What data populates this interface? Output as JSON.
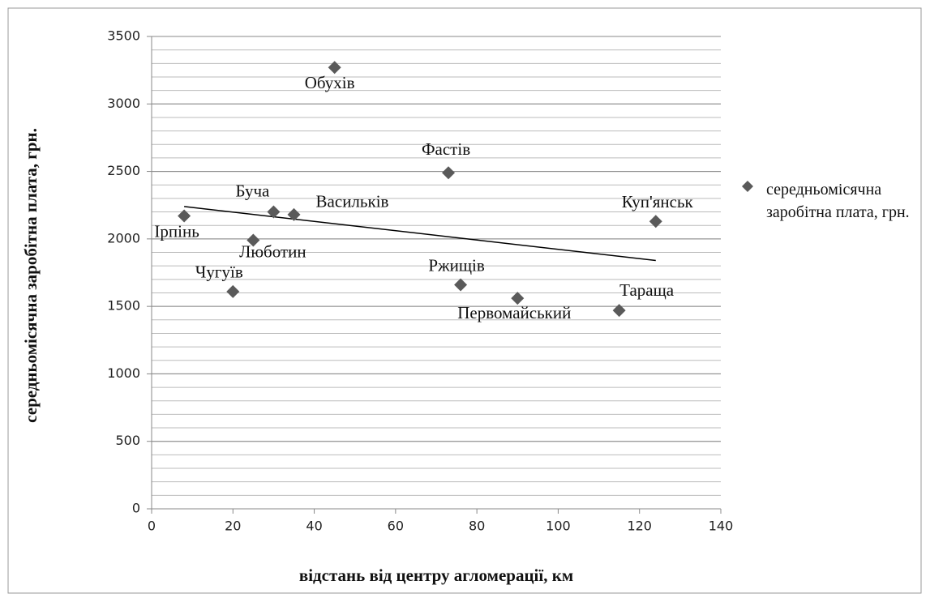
{
  "chart_data": {
    "type": "scatter",
    "x_label": "відстань від центру агломерації, км",
    "y_label": "середньомісячна заробітна плата, грн.",
    "series": [
      {
        "name": "середньомісячна заробітна плата, грн.",
        "color": "#5a5a5a",
        "x": [
          8,
          30,
          35,
          25,
          20,
          45,
          73,
          76,
          90,
          115,
          124
        ],
        "values": [
          2170,
          2200,
          2180,
          1990,
          1610,
          3270,
          2490,
          1660,
          1560,
          1470,
          2130
        ],
        "point_labels": [
          "Ірпінь",
          "Буча",
          "Васильків",
          "Люботин",
          "Чугуїв",
          "Обухів",
          "Фастів",
          "Ржищів",
          "Первомайський",
          "Тараща",
          "Куп'янськ"
        ]
      }
    ],
    "trendline": {
      "x": [
        8,
        124
      ],
      "values": [
        2240,
        1840
      ],
      "color": "#000000"
    },
    "xlim": [
      0,
      140
    ],
    "xticks": [
      0,
      20,
      40,
      60,
      80,
      100,
      120,
      140
    ],
    "ylim": [
      0,
      3500
    ],
    "yticks": [
      0,
      500,
      1000,
      1500,
      2000,
      2500,
      3000,
      3500
    ],
    "grid": true,
    "minor_grid_step": 100,
    "legend": "right"
  }
}
